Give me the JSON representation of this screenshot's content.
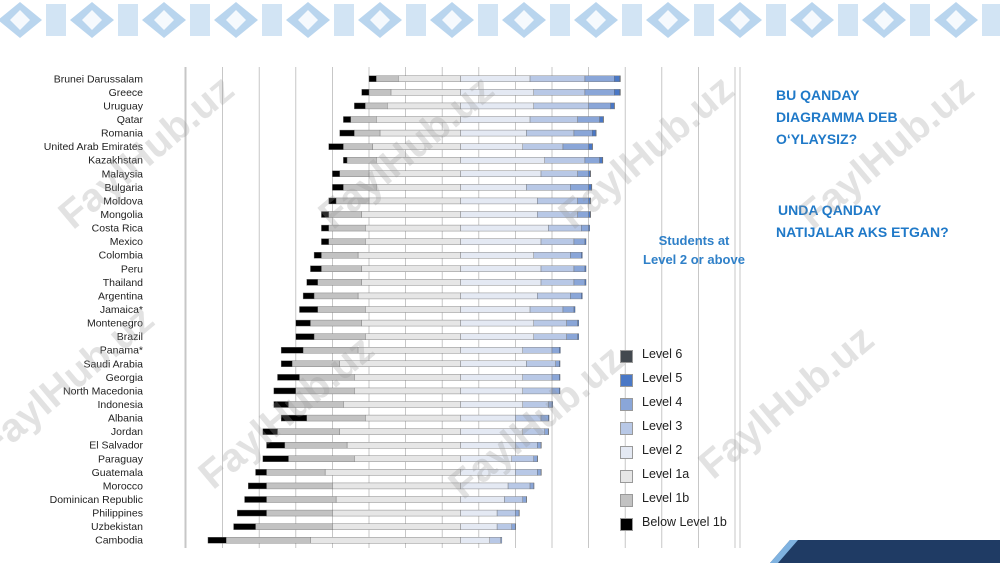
{
  "slide": {
    "annotation_lines": [
      "Students at",
      "Level 2 or above"
    ],
    "question_1_lines": [
      "BU QANDAY",
      "DIAGRAMMA DEB",
      "O‘YLAYSIZ?"
    ],
    "question_2_lines": [
      "UNDA QANDAY",
      "NATIJALAR AKS ETGAN?"
    ],
    "watermark": "FaylHub.uz"
  },
  "colors": {
    "banner_blue": "#7fb2e0",
    "text_blue": "#1f79c8",
    "corner_dark": "#1f3b64",
    "level_6": "#43494f",
    "level_5": "#4a78c6",
    "level_4": "#8aa6d8",
    "level_3": "#b8c8e6",
    "level_2": "#e4e9f3",
    "level_1a": "#e6e6e6",
    "level_1b": "#c2c2c2",
    "below_1b": "#000000"
  },
  "chart_data": {
    "type": "bar",
    "orientation": "horizontal",
    "stacking": "diverging",
    "baseline_level": "Level 2",
    "title": "",
    "xlabel": "",
    "ylabel": "",
    "xlim": [
      -75,
      75
    ],
    "grid": true,
    "legend_position": "right",
    "categories": [
      "Brunei Darussalam",
      "Greece",
      "Uruguay",
      "Qatar",
      "Romania",
      "United Arab Emirates",
      "Kazakhstan",
      "Malaysia",
      "Bulgaria",
      "Moldova",
      "Mongolia",
      "Costa Rica",
      "Mexico",
      "Colombia",
      "Peru",
      "Thailand",
      "Argentina",
      "Jamaica*",
      "Montenegro",
      "Brazil",
      "Panama*",
      "Saudi Arabia",
      "Georgia",
      "North Macedonia",
      "Indonesia",
      "Albania",
      "Jordan",
      "El Salvador",
      "Paraguay",
      "Guatemala",
      "Morocco",
      "Dominican Republic",
      "Philippines",
      "Uzbekistan",
      "Cambodia"
    ],
    "series": [
      {
        "name": "Below Level 1b",
        "values": [
          -2,
          -2,
          -3,
          -2,
          -4,
          -4,
          -1,
          -2,
          -3,
          -2,
          -2,
          -2,
          -2,
          -2,
          -3,
          -3,
          -3,
          -5,
          -4,
          -5,
          -6,
          -3,
          -6,
          -6,
          -4,
          -7,
          -4,
          -5,
          -7,
          -3,
          -5,
          -6,
          -8,
          -6,
          -5
        ]
      },
      {
        "name": "Level 1b",
        "values": [
          -6,
          -6,
          -6,
          -7,
          -7,
          -8,
          -8,
          -8,
          -9,
          -9,
          -9,
          -10,
          -10,
          -10,
          -11,
          -12,
          -12,
          -13,
          -14,
          -14,
          -15,
          -13,
          -15,
          -16,
          -15,
          -16,
          -17,
          -17,
          -18,
          -16,
          -18,
          -19,
          -18,
          -21,
          -23
        ]
      },
      {
        "name": "Level 1a",
        "values": [
          -17,
          -19,
          -20,
          -23,
          -22,
          -24,
          -23,
          -25,
          -23,
          -25,
          -27,
          -26,
          -26,
          -28,
          -27,
          -27,
          -28,
          -26,
          -27,
          -26,
          -28,
          -33,
          -29,
          -29,
          -32,
          -26,
          -33,
          -31,
          -29,
          -37,
          -35,
          -34,
          -35,
          -35,
          -41
        ]
      },
      {
        "name": "Level 2",
        "values": [
          19,
          20,
          20,
          19,
          18,
          17,
          23,
          22,
          18,
          21,
          21,
          24,
          22,
          20,
          22,
          22,
          21,
          19,
          20,
          20,
          17,
          18,
          17,
          17,
          17,
          15,
          17,
          15,
          14,
          15,
          13,
          12,
          10,
          10,
          8
        ]
      },
      {
        "name": "Level 3",
        "values": [
          15,
          14,
          15,
          13,
          13,
          11,
          11,
          10,
          12,
          11,
          11,
          9,
          9,
          10,
          9,
          9,
          9,
          9,
          9,
          9,
          8,
          8,
          8,
          8,
          7,
          7,
          6,
          6,
          6,
          6,
          6,
          5,
          5,
          4,
          3
        ]
      },
      {
        "name": "Level 4",
        "values": [
          8,
          8,
          6,
          6,
          5,
          7,
          4,
          3,
          5,
          3,
          3,
          2,
          3,
          3,
          3,
          3,
          3,
          3,
          3,
          3,
          2,
          1,
          2,
          2,
          1,
          2,
          1,
          1,
          1,
          1,
          1,
          1,
          1,
          1,
          0.3
        ]
      },
      {
        "name": "Level 5",
        "values": [
          1.5,
          1.5,
          1,
          1,
          1,
          1,
          0.8,
          0.5,
          0.8,
          0.5,
          0.5,
          0.3,
          0.3,
          0.3,
          0.3,
          0.3,
          0.3,
          0.3,
          0.3,
          0.3,
          0.3,
          0.2,
          0.2,
          0.2,
          0.2,
          0.2,
          0.1,
          0.1,
          0.1,
          0.1,
          0.1,
          0.1,
          0.1,
          0.1,
          0
        ]
      },
      {
        "name": "Level 6",
        "values": [
          0.2,
          0.2,
          0.1,
          0.1,
          0.1,
          0.1,
          0.1,
          0.1,
          0.1,
          0.1,
          0.1,
          0,
          0,
          0,
          0,
          0,
          0,
          0,
          0,
          0,
          0,
          0,
          0,
          0,
          0,
          0,
          0,
          0,
          0,
          0,
          0,
          0,
          0,
          0,
          0
        ]
      }
    ],
    "legend": [
      "Level 6",
      "Level 5",
      "Level 4",
      "Level 3",
      "Level 2",
      "Level 1a",
      "Level 1b",
      "Below Level 1b"
    ]
  }
}
